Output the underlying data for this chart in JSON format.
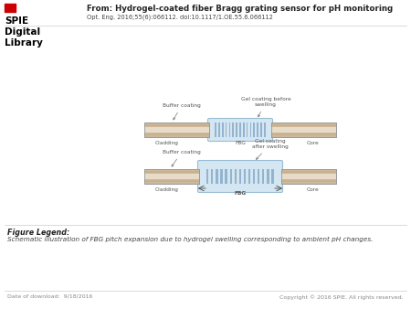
{
  "title_from": "From: Hydrogel-coated fiber Bragg grating sensor for pH monitoring",
  "subtitle": "Opt. Eng. 2016;55(6):066112. doi:10.1117/1.OE.55.6.066112",
  "figure_legend_title": "Figure Legend:",
  "figure_legend_text": "Schematic illustration of FBG pitch expansion due to hydrogel swelling corresponding to ambient pH changes.",
  "footer_left": "Date of download:  9/18/2016",
  "footer_right": "Copyright © 2016 SPIE. All rights reserved.",
  "spie_text": [
    "SPIE",
    "Digital",
    "Library"
  ],
  "top_diagram": {
    "label_buffer_coating": "Buffer coating",
    "label_gel_coating": "Gel coating before\nswelling",
    "label_cladding": "Cladding",
    "label_fbg": "FBG",
    "label_core": "Core"
  },
  "bottom_diagram": {
    "label_buffer_coating": "Buffer coating",
    "label_gel_coating": "Gel coating\nafter swelling",
    "label_cladding": "Cladding",
    "label_fbg": "FBG",
    "label_core": "Core"
  },
  "bg_color": "#ffffff",
  "fiber_color": "#cdb99a",
  "fiber_mid_color": "#e8dcc8",
  "fiber_edge_color": "#b09878",
  "core_color": "#ddd0b0",
  "gel_color": "#d0e4f0",
  "gel_edge_color": "#90b8d0",
  "stripe_color": "#88aac8",
  "text_color": "#444444",
  "label_color": "#555555",
  "footer_color": "#888888",
  "spie_color": "#000000",
  "red_color": "#cc0000",
  "line_color": "#cccccc"
}
